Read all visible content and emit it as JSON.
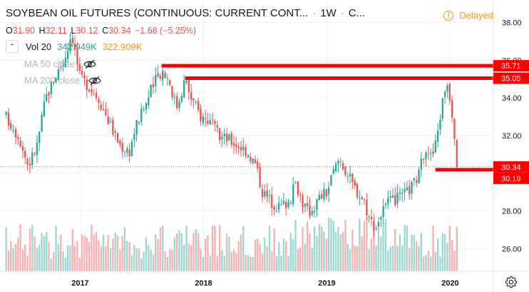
{
  "header": {
    "title": "SOYBEAN OIL FUTURES (CONTINUOUS: CURRENT CONT...",
    "interval": "1W",
    "source": "C...",
    "delayed_label": "Delayed"
  },
  "ohlc": {
    "o_label": "O",
    "o_value": "31.90",
    "h_label": "H",
    "h_value": "32.11",
    "l_label": "L",
    "l_value": "30.12",
    "c_label": "C",
    "c_value": "30.34",
    "change": "−1.68 (−5.25%)"
  },
  "indicators": {
    "volume": {
      "label": "Vol 20",
      "value1": "342.949K",
      "value2": "322.909K"
    },
    "ma50": {
      "label": "MA 50 close"
    },
    "ma200": {
      "label": "MA 200 close"
    }
  },
  "icons": {
    "collapse": "chevron-up-icon",
    "hidden": "eye-slash-icon",
    "settings": "gear-icon",
    "delayed": "exclamation-circle-icon"
  },
  "colors": {
    "up": "#26a69a",
    "down": "#ef5350",
    "level": "#ff0000",
    "delayed": "#ff9800",
    "grid": "#f0f3fa"
  },
  "chart_data": {
    "type": "candlestick",
    "x_ticks": [
      "2017",
      "2018",
      "2019",
      "2020"
    ],
    "y_ticks": [
      "38.00",
      "36.00",
      "34.00",
      "32.00",
      "30.00",
      "28.00",
      "26.00"
    ],
    "ylim": [
      24.8,
      39.2
    ],
    "price_labels": [
      {
        "value": 35.71,
        "text": "35.71"
      },
      {
        "value": 35.05,
        "text": "35.05"
      },
      {
        "value": 30.34,
        "text": "30.34"
      },
      {
        "value": 30.19,
        "text": "30.19"
      }
    ],
    "last_price": 30.34,
    "horizontal_levels": [
      {
        "price": 35.71,
        "from": 2017.66
      },
      {
        "price": 35.05,
        "from": 2017.85
      },
      {
        "price": 30.19,
        "from": 2019.88
      }
    ],
    "close_path": [
      [
        2016.4,
        33.0
      ],
      [
        2016.5,
        32.0
      ],
      [
        2016.58,
        30.4
      ],
      [
        2016.65,
        31.5
      ],
      [
        2016.72,
        34.0
      ],
      [
        2016.8,
        35.2
      ],
      [
        2016.87,
        36.0
      ],
      [
        2016.93,
        37.5
      ],
      [
        2017.0,
        35.0
      ],
      [
        2017.05,
        34.8
      ],
      [
        2017.15,
        34.0
      ],
      [
        2017.25,
        32.5
      ],
      [
        2017.32,
        31.5
      ],
      [
        2017.4,
        31.2
      ],
      [
        2017.45,
        32.5
      ],
      [
        2017.52,
        33.5
      ],
      [
        2017.58,
        34.5
      ],
      [
        2017.66,
        35.5
      ],
      [
        2017.72,
        35.0
      ],
      [
        2017.78,
        33.5
      ],
      [
        2017.85,
        35.0
      ],
      [
        2017.9,
        34.0
      ],
      [
        2017.98,
        33.0
      ],
      [
        2018.05,
        32.8
      ],
      [
        2018.12,
        32.0
      ],
      [
        2018.2,
        31.8
      ],
      [
        2018.28,
        31.5
      ],
      [
        2018.35,
        31.2
      ],
      [
        2018.42,
        30.5
      ],
      [
        2018.48,
        29.0
      ],
      [
        2018.55,
        28.5
      ],
      [
        2018.62,
        28.2
      ],
      [
        2018.7,
        28.6
      ],
      [
        2018.75,
        29.5
      ],
      [
        2018.8,
        28.5
      ],
      [
        2018.85,
        27.9
      ],
      [
        2018.9,
        28.3
      ],
      [
        2018.95,
        28.8
      ],
      [
        2019.0,
        29.0
      ],
      [
        2019.05,
        30.0
      ],
      [
        2019.1,
        30.8
      ],
      [
        2019.15,
        30.2
      ],
      [
        2019.2,
        29.5
      ],
      [
        2019.25,
        29.0
      ],
      [
        2019.3,
        28.6
      ],
      [
        2019.35,
        27.5
      ],
      [
        2019.4,
        27.2
      ],
      [
        2019.45,
        28.0
      ],
      [
        2019.5,
        28.4
      ],
      [
        2019.55,
        28.6
      ],
      [
        2019.6,
        28.7
      ],
      [
        2019.65,
        29.0
      ],
      [
        2019.7,
        29.4
      ],
      [
        2019.75,
        30.0
      ],
      [
        2019.8,
        31.5
      ],
      [
        2019.85,
        30.8
      ],
      [
        2019.88,
        31.5
      ],
      [
        2019.93,
        33.5
      ],
      [
        2019.97,
        35.0
      ],
      [
        2020.0,
        34.0
      ],
      [
        2020.03,
        32.5
      ],
      [
        2020.06,
        30.34
      ]
    ],
    "volume_note": "volume histogram shown below price"
  }
}
